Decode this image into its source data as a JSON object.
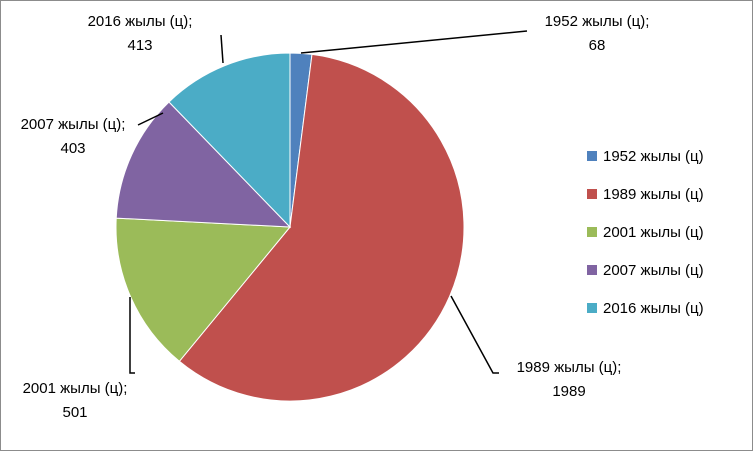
{
  "chart_data": {
    "type": "pie",
    "categories": [
      "1952 жылы (ц)",
      "1989 жылы (ц)",
      "2001 жылы (ц)",
      "2007 жылы (ц)",
      "2016 жылы (ц)"
    ],
    "values": [
      68,
      1989,
      501,
      403,
      413
    ],
    "colors": [
      "#4f81bd",
      "#c0504d",
      "#9bbb59",
      "#8064a2",
      "#4bacc6"
    ],
    "data_labels": [
      {
        "line1": "1952 жылы (ц);",
        "line2": "68"
      },
      {
        "line1": "1989 жылы (ц);",
        "line2": "1989"
      },
      {
        "line1": "2001 жылы (ц);",
        "line2": "501"
      },
      {
        "line1": "2007 жылы (ц);",
        "line2": "403"
      },
      {
        "line1": "2016 жылы (ц);",
        "line2": "413"
      }
    ],
    "legend_position": "right",
    "start_angle": "12 o'clock",
    "direction": "clockwise"
  }
}
